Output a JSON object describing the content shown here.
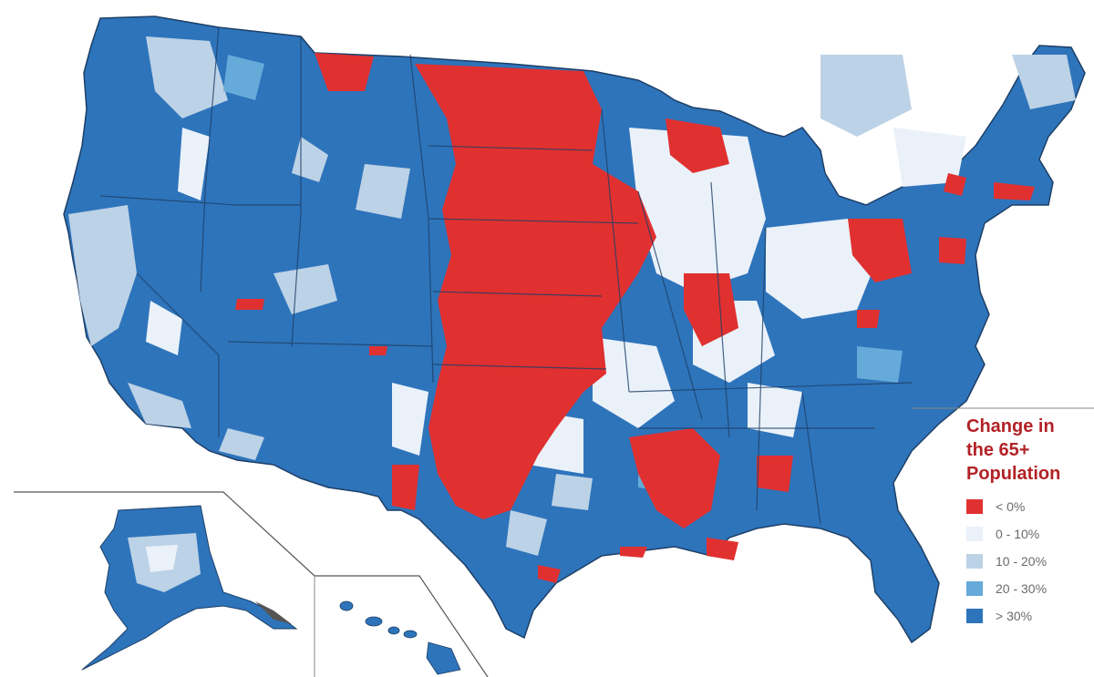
{
  "legend": {
    "title": "Change in\nthe 65+\nPopulation",
    "items": [
      {
        "id": "lt0",
        "label": "< 0%",
        "color": "#e03030"
      },
      {
        "id": "0-10",
        "label": "0 - 10%",
        "color": "#eaf1f9"
      },
      {
        "id": "10-20",
        "label": "10 - 20%",
        "color": "#bcd2e6"
      },
      {
        "id": "20-30",
        "label": "20 - 30%",
        "color": "#66aad9"
      },
      {
        "id": "gt30",
        "label": "> 30%",
        "color": "#2e74bb"
      }
    ]
  },
  "colors": {
    "decline": "#e03030",
    "growth_0_10": "#eaf1f9",
    "growth_10_20": "#bcd2e6",
    "growth_20_30": "#66aad9",
    "growth_over_30": "#2e74bb",
    "border": "#333333",
    "inset_frame": "#444444"
  },
  "map_regions": {
    "insets": [
      "Alaska",
      "Hawaii"
    ]
  }
}
